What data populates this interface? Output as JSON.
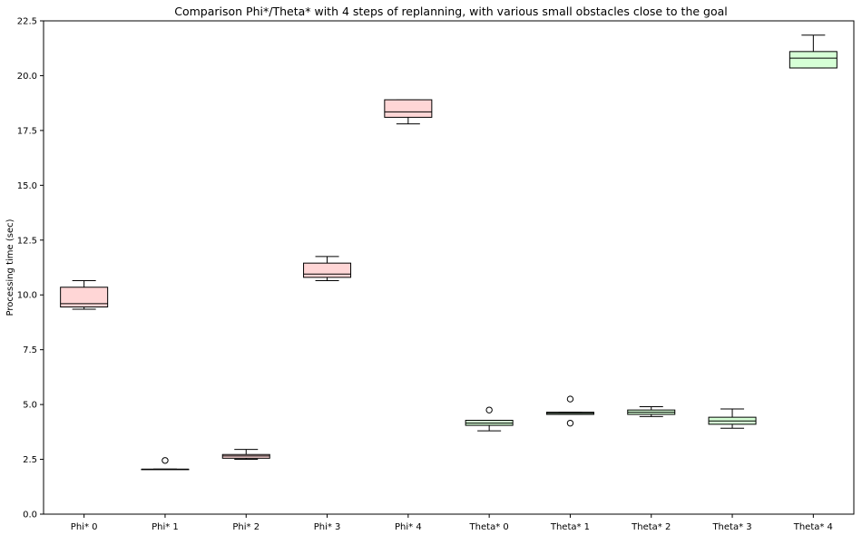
{
  "chart_data": {
    "type": "boxplot",
    "title": "Comparison Phi*/Theta* with 4 steps of replanning, with various small obstacles close to the goal",
    "xlabel": "",
    "ylabel": "Processing time (sec)",
    "ylim": [
      0,
      22.5
    ],
    "yticks": [
      0.0,
      2.5,
      5.0,
      7.5,
      10.0,
      12.5,
      15.0,
      17.5,
      20.0,
      22.5
    ],
    "ytick_labels": [
      "0.0",
      "2.5",
      "5.0",
      "7.5",
      "10.0",
      "12.5",
      "15.0",
      "17.5",
      "20.0",
      "22.5"
    ],
    "grid": false,
    "colors": {
      "phi_fill": "#ffd6d6",
      "theta_fill": "#d6ffd6",
      "edge": "#000000",
      "median": "#000000"
    },
    "categories": [
      "Phi* 0",
      "Phi* 1",
      "Phi* 2",
      "Phi* 3",
      "Phi* 4",
      "Theta* 0",
      "Theta* 1",
      "Theta* 2",
      "Theta* 3",
      "Theta* 4"
    ],
    "boxes": [
      {
        "label": "Phi* 0",
        "fill": "phi",
        "whislo": 9.35,
        "q1": 9.45,
        "med": 9.6,
        "q3": 10.35,
        "whishi": 10.65,
        "fliers": []
      },
      {
        "label": "Phi* 1",
        "fill": "phi",
        "whislo": 2.05,
        "q1": 2.05,
        "med": 2.05,
        "q3": 2.05,
        "whishi": 2.05,
        "fliers": [
          2.45
        ]
      },
      {
        "label": "Phi* 2",
        "fill": "phi",
        "whislo": 2.5,
        "q1": 2.55,
        "med": 2.65,
        "q3": 2.72,
        "whishi": 2.95,
        "fliers": []
      },
      {
        "label": "Phi* 3",
        "fill": "phi",
        "whislo": 10.65,
        "q1": 10.8,
        "med": 10.95,
        "q3": 11.45,
        "whishi": 11.75,
        "fliers": []
      },
      {
        "label": "Phi* 4",
        "fill": "phi",
        "whislo": 17.8,
        "q1": 18.1,
        "med": 18.35,
        "q3": 18.9,
        "whishi": 18.9,
        "fliers": []
      },
      {
        "label": "Theta* 0",
        "fill": "theta",
        "whislo": 3.8,
        "q1": 4.05,
        "med": 4.15,
        "q3": 4.28,
        "whishi": 4.28,
        "fliers": [
          4.75
        ]
      },
      {
        "label": "Theta* 1",
        "fill": "theta",
        "whislo": 4.55,
        "q1": 4.55,
        "med": 4.6,
        "q3": 4.65,
        "whishi": 4.65,
        "fliers": [
          5.25,
          4.15
        ]
      },
      {
        "label": "Theta* 2",
        "fill": "theta",
        "whislo": 4.45,
        "q1": 4.55,
        "med": 4.65,
        "q3": 4.75,
        "whishi": 4.9,
        "fliers": []
      },
      {
        "label": "Theta* 3",
        "fill": "theta",
        "whislo": 3.92,
        "q1": 4.1,
        "med": 4.25,
        "q3": 4.42,
        "whishi": 4.8,
        "fliers": []
      },
      {
        "label": "Theta* 4",
        "fill": "theta",
        "whislo": 20.35,
        "q1": 20.35,
        "med": 20.8,
        "q3": 21.1,
        "whishi": 21.85,
        "fliers": []
      }
    ]
  }
}
